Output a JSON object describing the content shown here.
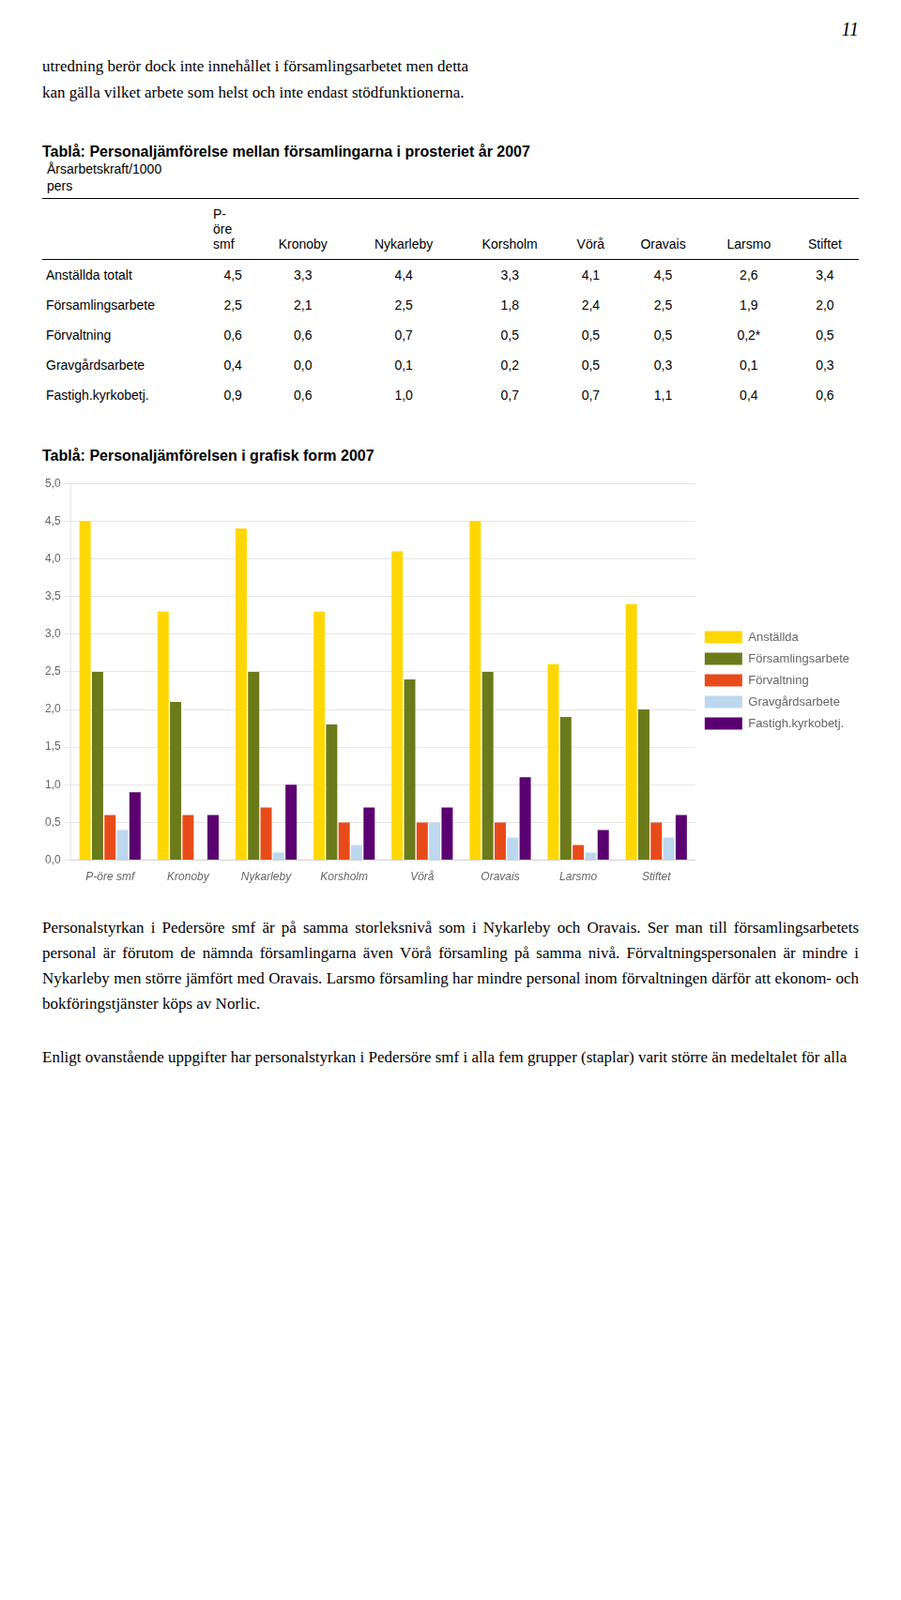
{
  "page_number": "11",
  "intro_text": [
    "utredning berör dock inte innehållet i församlingsarbetet men detta",
    "kan gälla vilket arbete som helst och inte endast stödfunktionerna."
  ],
  "table": {
    "title": "Tablå: Personaljämförelse mellan församlingarna i prosteriet år 2007",
    "subtitle": [
      "Årsarbetskraft/1000",
      "pers"
    ],
    "column_headers": [
      [
        "P-",
        "öre",
        "smf"
      ],
      [
        "Kronoby"
      ],
      [
        "Nykarleby"
      ],
      [
        "Korsholm"
      ],
      [
        "Vörå"
      ],
      [
        "Oravais"
      ],
      [
        "Larsmo"
      ],
      [
        "Stiftet"
      ]
    ],
    "rows": [
      {
        "label": "Anställda totalt",
        "cells": [
          "4,5",
          "3,3",
          "4,4",
          "3,3",
          "4,1",
          "4,5",
          "2,6",
          "3,4"
        ]
      },
      {
        "label": "Församlingsarbete",
        "cells": [
          "2,5",
          "2,1",
          "2,5",
          "1,8",
          "2,4",
          "2,5",
          "1,9",
          "2,0"
        ]
      },
      {
        "label": "Förvaltning",
        "cells": [
          "0,6",
          "0,6",
          "0,7",
          "0,5",
          "0,5",
          "0,5",
          "0,2*",
          "0,5"
        ]
      },
      {
        "label": "Gravgårdsarbete",
        "cells": [
          "0,4",
          "0,0",
          "0,1",
          "0,2",
          "0,5",
          "0,3",
          "0,1",
          "0,3"
        ]
      },
      {
        "label": "Fastigh.kyrkobetj.",
        "cells": [
          "0,9",
          "0,6",
          "1,0",
          "0,7",
          "0,7",
          "1,1",
          "0,4",
          "0,6"
        ]
      }
    ]
  },
  "chart_data": {
    "type": "bar",
    "title": "Tablå: Personaljämförelsen i grafisk form 2007",
    "categories": [
      "P-öre smf",
      "Kronoby",
      "Nykarleby",
      "Korsholm",
      "Vörå",
      "Oravais",
      "Larsmo",
      "Stiftet"
    ],
    "series": [
      {
        "name": "Anställda",
        "color": "#FFD700",
        "values": [
          4.5,
          3.3,
          4.4,
          3.3,
          4.1,
          4.5,
          2.6,
          3.4
        ]
      },
      {
        "name": "Församlingsarbete",
        "color": "#6B7A1A",
        "values": [
          2.5,
          2.1,
          2.5,
          1.8,
          2.4,
          2.5,
          1.9,
          2.0
        ]
      },
      {
        "name": "Förvaltning",
        "color": "#E84B1A",
        "values": [
          0.6,
          0.6,
          0.7,
          0.5,
          0.5,
          0.5,
          0.2,
          0.5
        ]
      },
      {
        "name": "Gravgårdsarbete",
        "color": "#BDD7EE",
        "values": [
          0.4,
          0.0,
          0.1,
          0.2,
          0.5,
          0.3,
          0.1,
          0.3
        ]
      },
      {
        "name": "Fastigh.kyrkobetj.",
        "color": "#5B0070",
        "values": [
          0.9,
          0.6,
          1.0,
          0.7,
          0.7,
          1.1,
          0.4,
          0.6
        ]
      }
    ],
    "ylim": [
      0.0,
      5.0
    ],
    "yticks": [
      {
        "value": 0.0,
        "label": "0,0"
      },
      {
        "value": 0.5,
        "label": "0,5"
      },
      {
        "value": 1.0,
        "label": "1,0"
      },
      {
        "value": 1.5,
        "label": "1,5"
      },
      {
        "value": 2.0,
        "label": "2,0"
      },
      {
        "value": 2.5,
        "label": "2,5"
      },
      {
        "value": 3.0,
        "label": "3,0"
      },
      {
        "value": 3.5,
        "label": "3,5"
      },
      {
        "value": 4.0,
        "label": "4,0"
      },
      {
        "value": 4.5,
        "label": "4,5"
      },
      {
        "value": 5.0,
        "label": "5,0"
      }
    ],
    "grid": true,
    "legend": "right"
  },
  "body_paragraphs": [
    "Personalstyrkan i Pedersöre smf är på samma storleksnivå som i Nykarleby och Oravais. Ser man till församlingsarbetets personal är förutom de nämnda församlingarna även Vörå församling på samma nivå. Förvaltningspersonalen är mindre i Nykarleby men större jämfört med Oravais. Larsmo församling har mindre personal inom förvaltningen därför att ekonom- och bokföringstjänster köps av Norlic.",
    "Enligt ovanstående uppgifter har personalstyrkan i Pedersöre smf i alla fem grupper (staplar) varit större än medeltalet för alla"
  ]
}
